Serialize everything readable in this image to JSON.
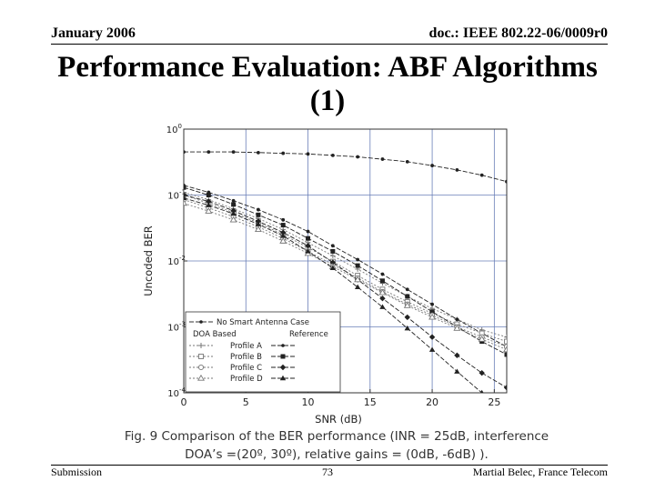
{
  "header": {
    "date": "January 2006",
    "doc": "doc.: IEEE 802.22-06/0009r0"
  },
  "slide": {
    "title_line1": "Performance Evaluation: ABF Algorithms",
    "title_line2": "(1)",
    "caption_line1": "Fig. 9 Comparison of the BER performance (INR = 25dB, interference",
    "caption_line2": "DOA’s =(20º, 30º), relative gains = (0dB, -6dB) )."
  },
  "footer": {
    "left": "Submission",
    "page": "73",
    "author": "Martial Belec, France Telecom"
  },
  "chart_data": {
    "type": "line",
    "xlabel": "SNR (dB)",
    "ylabel": "Uncoded BER",
    "xlim": [
      0,
      26
    ],
    "ylim": [
      0.0001,
      1
    ],
    "y_scale": "log",
    "x_ticks": [
      0,
      5,
      10,
      15,
      20,
      25
    ],
    "y_ticks": [
      {
        "value": 1,
        "mantissa": "10",
        "exp": "0"
      },
      {
        "value": 0.1,
        "mantissa": "10",
        "exp": "-1"
      },
      {
        "value": 0.01,
        "mantissa": "10",
        "exp": "-2"
      },
      {
        "value": 0.001,
        "mantissa": "10",
        "exp": "-3"
      },
      {
        "value": 0.0001,
        "mantissa": "10",
        "exp": "-4"
      }
    ],
    "grid": true,
    "legend": {
      "placement": "bottom-left",
      "top_entry": "No Smart Antenna Case",
      "col_doa": "DOA Based",
      "col_ref": "Reference",
      "rows": [
        "Profile A",
        "Profile B",
        "Profile C",
        "Profile D"
      ]
    },
    "x": [
      0,
      2,
      4,
      6,
      8,
      10,
      12,
      14,
      16,
      18,
      20,
      22,
      24,
      26
    ],
    "series": [
      {
        "name": "No Smart Antenna Case",
        "marker": "dot",
        "color": "#222222",
        "values": [
          0.45,
          0.45,
          0.45,
          0.44,
          0.43,
          0.42,
          0.4,
          0.38,
          0.35,
          0.32,
          0.28,
          0.24,
          0.2,
          0.16
        ]
      },
      {
        "name": "Profile A (DOA Based)",
        "marker": "plus",
        "color": "#777777",
        "values": [
          0.11,
          0.085,
          0.062,
          0.044,
          0.03,
          0.019,
          0.012,
          0.0075,
          0.0046,
          0.0029,
          0.0019,
          0.0013,
          0.0009,
          0.0007
        ]
      },
      {
        "name": "Profile A (Reference)",
        "marker": "dot",
        "color": "#222222",
        "values": [
          0.14,
          0.11,
          0.082,
          0.06,
          0.042,
          0.028,
          0.017,
          0.0105,
          0.0063,
          0.0037,
          0.0022,
          0.0013,
          0.0008,
          0.0005
        ]
      },
      {
        "name": "Profile B (DOA Based)",
        "marker": "square-open",
        "color": "#777777",
        "values": [
          0.1,
          0.075,
          0.054,
          0.038,
          0.025,
          0.016,
          0.0098,
          0.006,
          0.0037,
          0.0024,
          0.0016,
          0.0011,
          0.0008,
          0.0006
        ]
      },
      {
        "name": "Profile B (Reference)",
        "marker": "square",
        "color": "#222222",
        "values": [
          0.13,
          0.1,
          0.072,
          0.05,
          0.035,
          0.022,
          0.014,
          0.0085,
          0.005,
          0.0029,
          0.0017,
          0.001,
          0.0006,
          0.00038
        ]
      },
      {
        "name": "Profile C (DOA Based)",
        "marker": "circle-open",
        "color": "#777777",
        "values": [
          0.085,
          0.064,
          0.047,
          0.033,
          0.022,
          0.014,
          0.0088,
          0.0055,
          0.0034,
          0.0022,
          0.0015,
          0.001,
          0.0007,
          0.0005
        ]
      },
      {
        "name": "Profile C (Reference)",
        "marker": "diamond",
        "color": "#222222",
        "values": [
          0.1,
          0.08,
          0.058,
          0.04,
          0.027,
          0.017,
          0.0095,
          0.0052,
          0.0027,
          0.0014,
          0.0007,
          0.00037,
          0.0002,
          0.00012
        ]
      },
      {
        "name": "Profile D (DOA Based)",
        "marker": "triangle-open",
        "color": "#777777",
        "values": [
          0.075,
          0.057,
          0.042,
          0.03,
          0.02,
          0.013,
          0.0082,
          0.0052,
          0.0033,
          0.0021,
          0.0014,
          0.00095,
          0.00065,
          0.00045
        ]
      },
      {
        "name": "Profile D (Reference)",
        "marker": "triangle",
        "color": "#222222",
        "values": [
          0.09,
          0.07,
          0.052,
          0.036,
          0.024,
          0.014,
          0.0078,
          0.004,
          0.002,
          0.00095,
          0.00045,
          0.00021,
          0.0001,
          5e-05
        ]
      }
    ]
  }
}
